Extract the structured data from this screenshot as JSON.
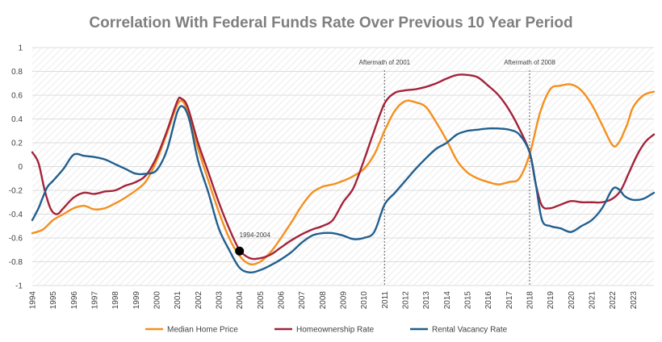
{
  "chart_data": {
    "type": "line",
    "title": "Correlation With Federal Funds Rate Over Previous 10 Year Period",
    "xlabel": "",
    "ylabel": "",
    "ylim": [
      -1,
      1
    ],
    "yticks": [
      1,
      0.8,
      0.6,
      0.4,
      0.2,
      0,
      -0.2,
      -0.4,
      -0.6,
      -0.8,
      -1
    ],
    "xlim": [
      1994,
      2024
    ],
    "xticks": [
      "1994",
      "1995",
      "1996",
      "1997",
      "1998",
      "1999",
      "2000",
      "2001",
      "2002",
      "2003",
      "2004",
      "2005",
      "2006",
      "2007",
      "2008",
      "2009",
      "2010",
      "2011",
      "2012",
      "2013",
      "2014",
      "2015",
      "2016",
      "2017",
      "2018",
      "2019",
      "2020",
      "2021",
      "2022",
      "2023"
    ],
    "grid": true,
    "legend_position": "bottom",
    "series": [
      {
        "name": "Median Home Price",
        "color": "#F4901E",
        "points": [
          [
            1994,
            -0.56
          ],
          [
            1994.5,
            -0.53
          ],
          [
            1995,
            -0.45
          ],
          [
            1995.5,
            -0.4
          ],
          [
            1996,
            -0.35
          ],
          [
            1996.5,
            -0.33
          ],
          [
            1997,
            -0.36
          ],
          [
            1997.5,
            -0.35
          ],
          [
            1998,
            -0.31
          ],
          [
            1998.5,
            -0.26
          ],
          [
            1999,
            -0.2
          ],
          [
            1999.5,
            -0.12
          ],
          [
            2000,
            0.05
          ],
          [
            2000.5,
            0.28
          ],
          [
            2001,
            0.52
          ],
          [
            2001.3,
            0.54
          ],
          [
            2001.6,
            0.4
          ],
          [
            2002,
            0.15
          ],
          [
            2002.5,
            -0.12
          ],
          [
            2003,
            -0.38
          ],
          [
            2003.5,
            -0.6
          ],
          [
            2004,
            -0.75
          ],
          [
            2004.5,
            -0.82
          ],
          [
            2005,
            -0.8
          ],
          [
            2005.5,
            -0.72
          ],
          [
            2006,
            -0.6
          ],
          [
            2006.5,
            -0.47
          ],
          [
            2007,
            -0.33
          ],
          [
            2007.5,
            -0.22
          ],
          [
            2008,
            -0.17
          ],
          [
            2008.5,
            -0.15
          ],
          [
            2009,
            -0.12
          ],
          [
            2009.5,
            -0.08
          ],
          [
            2010,
            -0.02
          ],
          [
            2010.5,
            0.1
          ],
          [
            2011,
            0.3
          ],
          [
            2011.5,
            0.47
          ],
          [
            2012,
            0.55
          ],
          [
            2012.5,
            0.54
          ],
          [
            2013,
            0.5
          ],
          [
            2013.5,
            0.37
          ],
          [
            2014,
            0.22
          ],
          [
            2014.5,
            0.05
          ],
          [
            2015,
            -0.05
          ],
          [
            2015.5,
            -0.1
          ],
          [
            2016,
            -0.13
          ],
          [
            2016.5,
            -0.15
          ],
          [
            2017,
            -0.13
          ],
          [
            2017.5,
            -0.1
          ],
          [
            2018,
            0.1
          ],
          [
            2018.5,
            0.45
          ],
          [
            2019,
            0.65
          ],
          [
            2019.5,
            0.68
          ],
          [
            2020,
            0.69
          ],
          [
            2020.5,
            0.64
          ],
          [
            2021,
            0.52
          ],
          [
            2021.5,
            0.35
          ],
          [
            2022,
            0.18
          ],
          [
            2022.3,
            0.2
          ],
          [
            2022.7,
            0.35
          ],
          [
            2023,
            0.5
          ],
          [
            2023.5,
            0.6
          ],
          [
            2024,
            0.63
          ]
        ]
      },
      {
        "name": "Homeownership Rate",
        "color": "#A3233A",
        "points": [
          [
            1994,
            0.12
          ],
          [
            1994.3,
            0.03
          ],
          [
            1994.6,
            -0.2
          ],
          [
            1994.9,
            -0.36
          ],
          [
            1995.2,
            -0.4
          ],
          [
            1995.5,
            -0.35
          ],
          [
            1996,
            -0.26
          ],
          [
            1996.5,
            -0.22
          ],
          [
            1997,
            -0.23
          ],
          [
            1997.5,
            -0.21
          ],
          [
            1998,
            -0.2
          ],
          [
            1998.5,
            -0.16
          ],
          [
            1999,
            -0.13
          ],
          [
            1999.5,
            -0.07
          ],
          [
            2000,
            0.08
          ],
          [
            2000.5,
            0.3
          ],
          [
            2001,
            0.55
          ],
          [
            2001.2,
            0.57
          ],
          [
            2001.5,
            0.5
          ],
          [
            2002,
            0.2
          ],
          [
            2002.5,
            -0.05
          ],
          [
            2003,
            -0.3
          ],
          [
            2003.5,
            -0.52
          ],
          [
            2004,
            -0.7
          ],
          [
            2004.5,
            -0.77
          ],
          [
            2005,
            -0.77
          ],
          [
            2005.5,
            -0.74
          ],
          [
            2006,
            -0.68
          ],
          [
            2006.5,
            -0.62
          ],
          [
            2007,
            -0.57
          ],
          [
            2007.5,
            -0.53
          ],
          [
            2008,
            -0.5
          ],
          [
            2008.5,
            -0.45
          ],
          [
            2009,
            -0.3
          ],
          [
            2009.5,
            -0.18
          ],
          [
            2010,
            0.05
          ],
          [
            2010.5,
            0.3
          ],
          [
            2011,
            0.53
          ],
          [
            2011.5,
            0.62
          ],
          [
            2012,
            0.64
          ],
          [
            2012.5,
            0.65
          ],
          [
            2013,
            0.67
          ],
          [
            2013.5,
            0.7
          ],
          [
            2014,
            0.74
          ],
          [
            2014.5,
            0.77
          ],
          [
            2015,
            0.77
          ],
          [
            2015.5,
            0.75
          ],
          [
            2016,
            0.68
          ],
          [
            2016.5,
            0.6
          ],
          [
            2017,
            0.48
          ],
          [
            2017.5,
            0.32
          ],
          [
            2018,
            0.12
          ],
          [
            2018.3,
            -0.15
          ],
          [
            2018.6,
            -0.33
          ],
          [
            2019,
            -0.35
          ],
          [
            2019.5,
            -0.32
          ],
          [
            2020,
            -0.29
          ],
          [
            2020.5,
            -0.3
          ],
          [
            2021,
            -0.3
          ],
          [
            2021.5,
            -0.3
          ],
          [
            2022,
            -0.27
          ],
          [
            2022.4,
            -0.2
          ],
          [
            2022.8,
            -0.05
          ],
          [
            2023.2,
            0.1
          ],
          [
            2023.6,
            0.21
          ],
          [
            2024,
            0.27
          ]
        ]
      },
      {
        "name": "Rental Vacancy Rate",
        "color": "#215F8F",
        "points": [
          [
            1994,
            -0.45
          ],
          [
            1994.3,
            -0.35
          ],
          [
            1994.7,
            -0.18
          ],
          [
            1995,
            -0.12
          ],
          [
            1995.5,
            -0.02
          ],
          [
            1996,
            0.1
          ],
          [
            1996.5,
            0.09
          ],
          [
            1997,
            0.08
          ],
          [
            1997.5,
            0.06
          ],
          [
            1998,
            0.02
          ],
          [
            1998.5,
            -0.02
          ],
          [
            1999,
            -0.06
          ],
          [
            1999.5,
            -0.06
          ],
          [
            2000,
            -0.03
          ],
          [
            2000.5,
            0.14
          ],
          [
            2001,
            0.46
          ],
          [
            2001.3,
            0.5
          ],
          [
            2001.6,
            0.38
          ],
          [
            2002,
            0.05
          ],
          [
            2002.5,
            -0.22
          ],
          [
            2003,
            -0.52
          ],
          [
            2003.5,
            -0.7
          ],
          [
            2004,
            -0.85
          ],
          [
            2004.5,
            -0.89
          ],
          [
            2005,
            -0.87
          ],
          [
            2005.5,
            -0.83
          ],
          [
            2006,
            -0.78
          ],
          [
            2006.5,
            -0.72
          ],
          [
            2007,
            -0.64
          ],
          [
            2007.5,
            -0.58
          ],
          [
            2008,
            -0.56
          ],
          [
            2008.5,
            -0.56
          ],
          [
            2009,
            -0.58
          ],
          [
            2009.5,
            -0.61
          ],
          [
            2010,
            -0.6
          ],
          [
            2010.5,
            -0.55
          ],
          [
            2011,
            -0.32
          ],
          [
            2011.5,
            -0.22
          ],
          [
            2012,
            -0.12
          ],
          [
            2012.5,
            -0.02
          ],
          [
            2013,
            0.07
          ],
          [
            2013.5,
            0.15
          ],
          [
            2014,
            0.2
          ],
          [
            2014.5,
            0.27
          ],
          [
            2015,
            0.3
          ],
          [
            2015.5,
            0.31
          ],
          [
            2016,
            0.32
          ],
          [
            2016.5,
            0.32
          ],
          [
            2017,
            0.31
          ],
          [
            2017.5,
            0.27
          ],
          [
            2018,
            0.12
          ],
          [
            2018.3,
            -0.15
          ],
          [
            2018.6,
            -0.45
          ],
          [
            2019,
            -0.5
          ],
          [
            2019.5,
            -0.52
          ],
          [
            2020,
            -0.55
          ],
          [
            2020.5,
            -0.5
          ],
          [
            2021,
            -0.45
          ],
          [
            2021.5,
            -0.35
          ],
          [
            2022,
            -0.19
          ],
          [
            2022.3,
            -0.19
          ],
          [
            2022.6,
            -0.25
          ],
          [
            2023,
            -0.28
          ],
          [
            2023.5,
            -0.27
          ],
          [
            2024,
            -0.22
          ]
        ]
      }
    ],
    "annotations": [
      {
        "type": "vline",
        "x": 2011,
        "label": "Aftermath of 2001"
      },
      {
        "type": "vline",
        "x": 2018,
        "label": "Aftermath of 2008"
      },
      {
        "type": "point",
        "x": 2004,
        "y": -0.71,
        "label": "1994-2004"
      }
    ]
  }
}
